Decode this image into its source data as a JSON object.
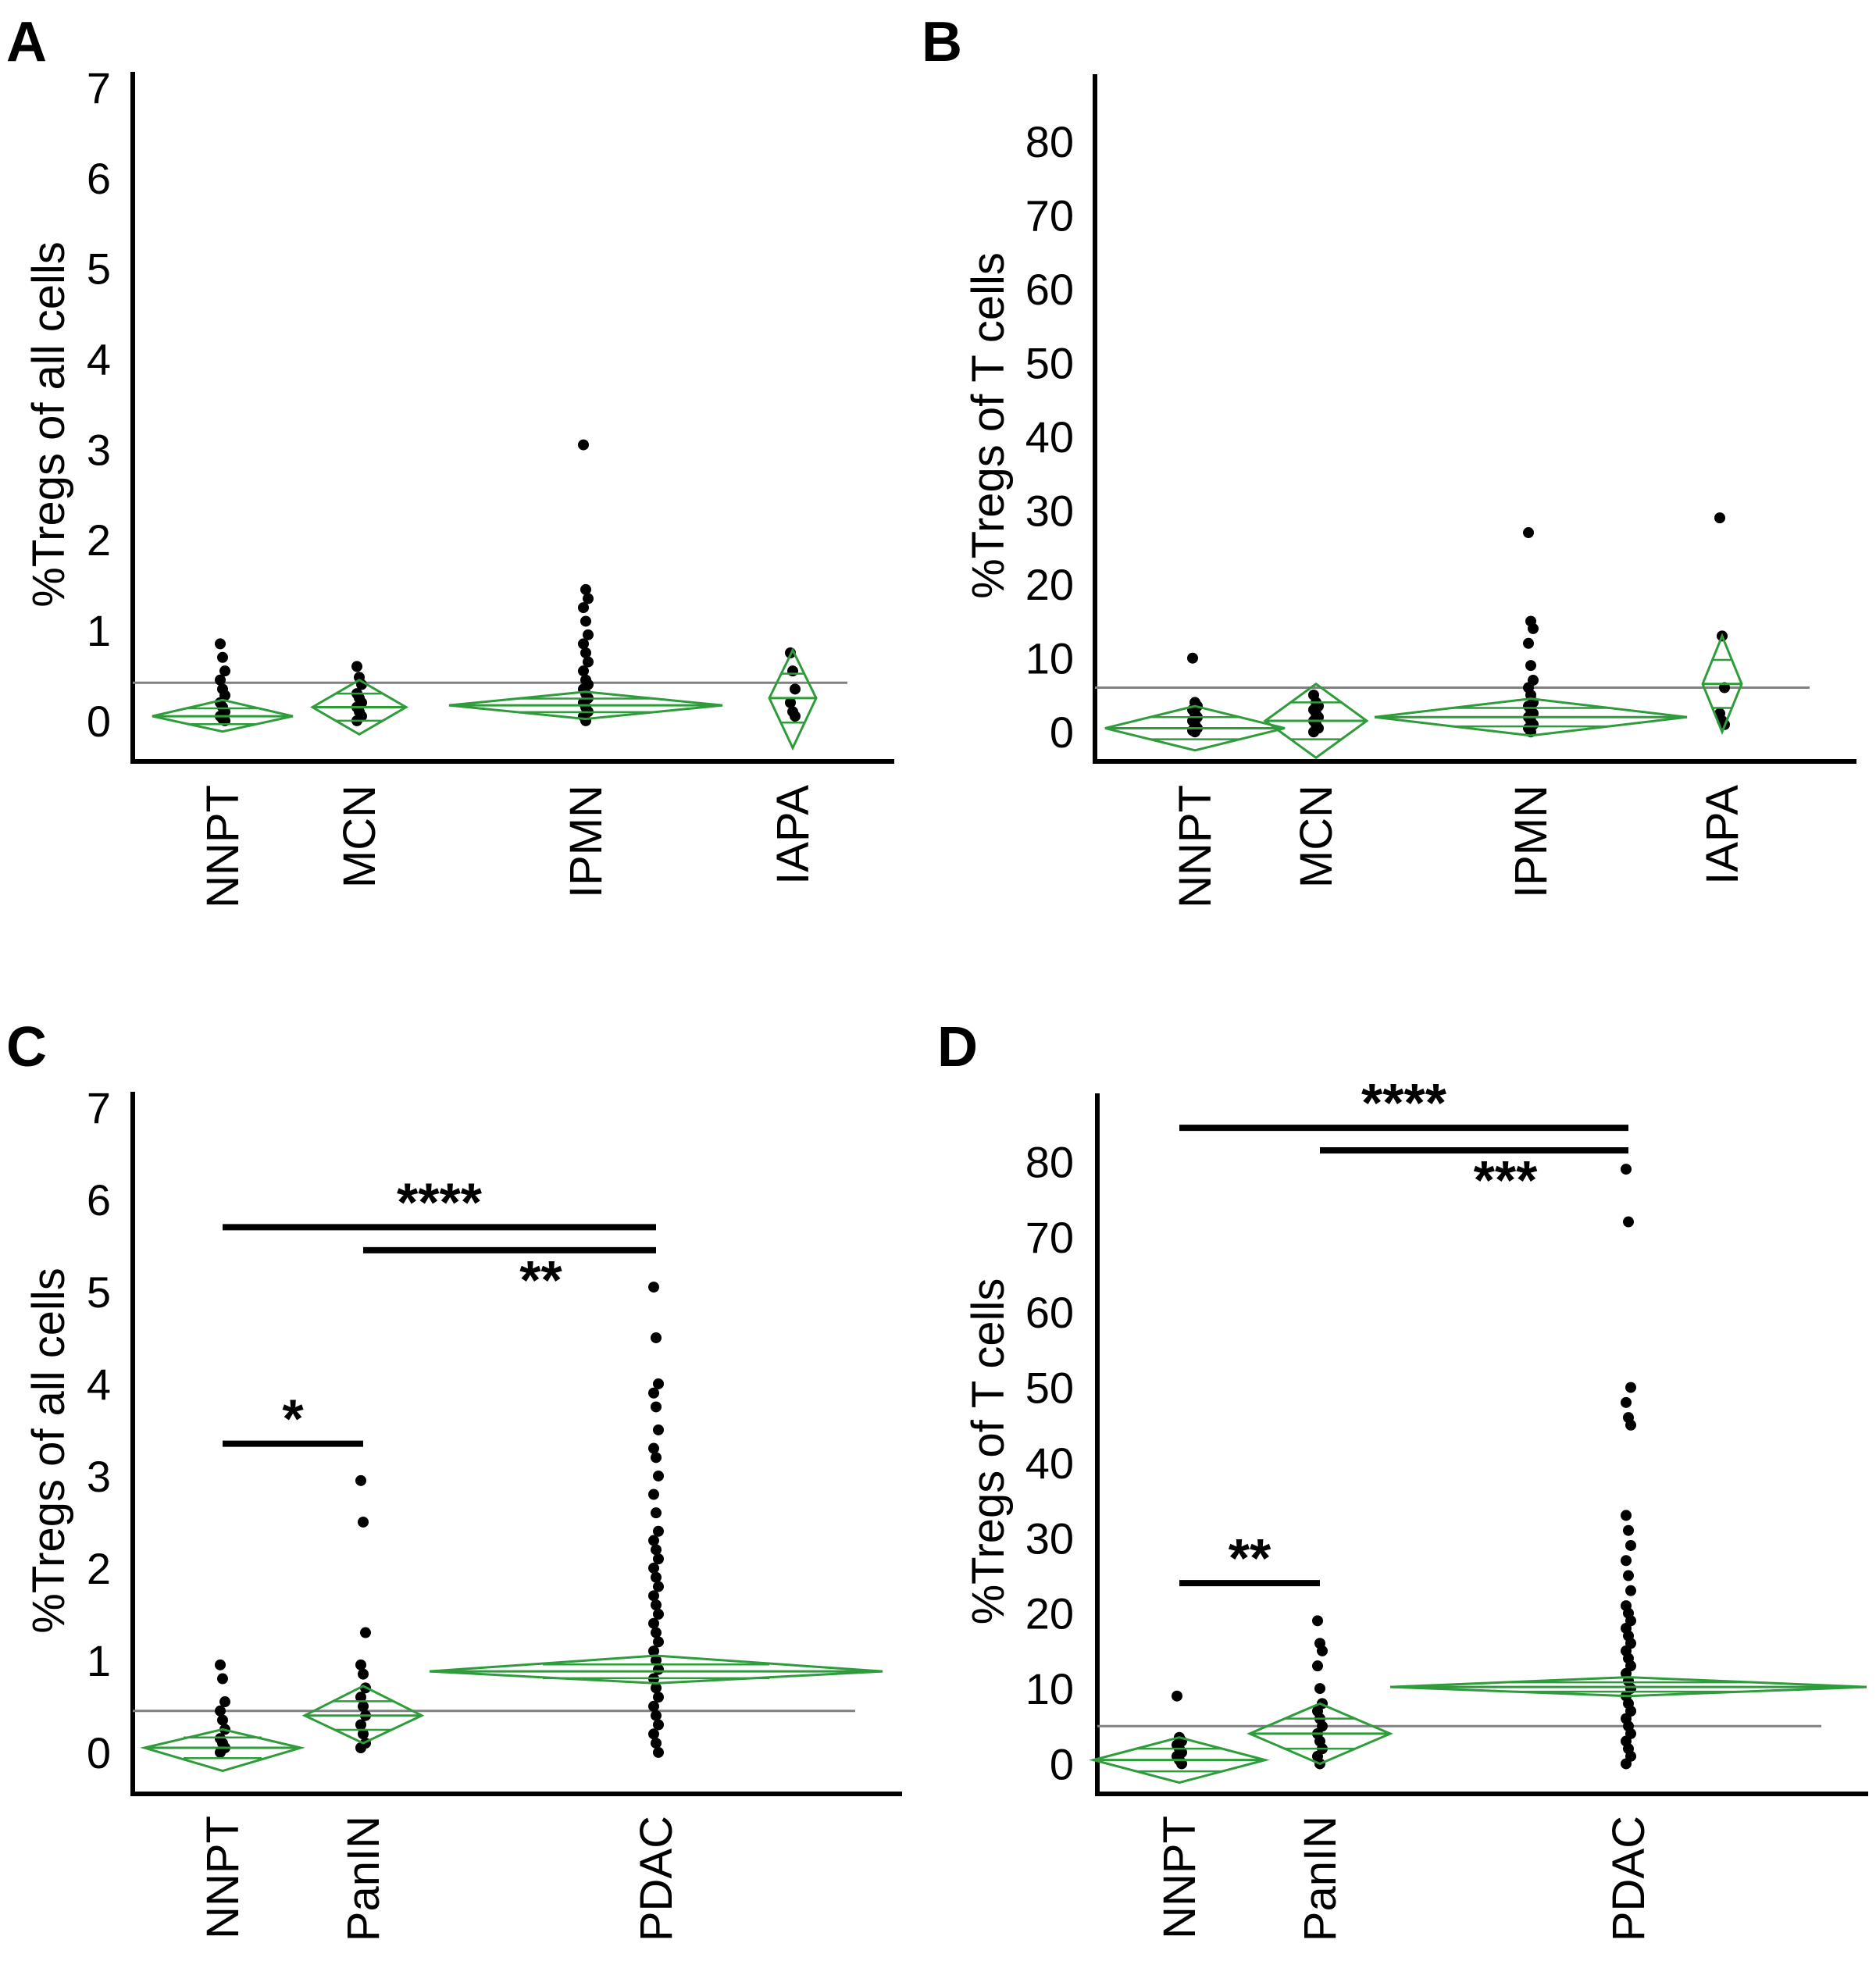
{
  "chart_data": [
    {
      "panel": "A",
      "type": "scatter",
      "ylabel": "%Tregs of all cells",
      "ylim": [
        -0.45,
        7.0
      ],
      "yticks": [
        0,
        1,
        2,
        3,
        4,
        5,
        6,
        7
      ],
      "categories": [
        "NNPT",
        "MCN",
        "IPMN",
        "IAPA"
      ],
      "grand_mean": 0.42,
      "groups": [
        {
          "name": "NNPT",
          "mean": 0.05,
          "ci": [
            -0.12,
            0.23
          ],
          "points": [
            0.85,
            0.7,
            0.55,
            0.45,
            0.35,
            0.28,
            0.2,
            0.15,
            0.1,
            0.05,
            0.02,
            0.0
          ]
        },
        {
          "name": "MCN",
          "mean": 0.15,
          "ci": [
            -0.15,
            0.45
          ],
          "points": [
            0.6,
            0.48,
            0.4,
            0.3,
            0.25,
            0.2,
            0.15,
            0.1,
            0.05,
            0.0
          ]
        },
        {
          "name": "IPMN",
          "mean": 0.17,
          "ci": [
            0.02,
            0.32
          ],
          "points": [
            3.05,
            1.45,
            1.35,
            1.25,
            1.1,
            0.95,
            0.85,
            0.75,
            0.65,
            0.55,
            0.45,
            0.4,
            0.35,
            0.3,
            0.25,
            0.2,
            0.15,
            0.1,
            0.05,
            0.0
          ]
        },
        {
          "name": "IAPA",
          "mean": 0.25,
          "ci": [
            -0.3,
            0.78
          ],
          "points": [
            0.75,
            0.55,
            0.35,
            0.2,
            0.1,
            0.05
          ]
        }
      ],
      "comparisons": []
    },
    {
      "panel": "B",
      "type": "scatter",
      "ylabel": "%Tregs of T cells",
      "ylim": [
        -4,
        87
      ],
      "yticks": [
        0,
        10,
        20,
        30,
        40,
        50,
        60,
        70,
        80
      ],
      "categories": [
        "NNPT",
        "MCN",
        "IPMN",
        "IAPA"
      ],
      "grand_mean": 6.0,
      "groups": [
        {
          "name": "NNPT",
          "mean": 0.5,
          "ci": [
            -2.5,
            3.5
          ],
          "points": [
            10.0,
            4.0,
            3.5,
            3.0,
            2.5,
            2.0,
            1.5,
            1.0,
            0.5,
            0.2,
            0.0
          ]
        },
        {
          "name": "MCN",
          "mean": 1.5,
          "ci": [
            -3.5,
            6.5
          ],
          "points": [
            5.0,
            4.0,
            3.5,
            3.0,
            2.5,
            2.0,
            1.5,
            1.0,
            0.5,
            0.0
          ]
        },
        {
          "name": "IPMN",
          "mean": 2.0,
          "ci": [
            -0.5,
            4.5
          ],
          "points": [
            27.0,
            15.0,
            14.0,
            12.0,
            9.0,
            7.0,
            6.0,
            5.0,
            4.0,
            3.5,
            3.0,
            2.5,
            2.0,
            1.5,
            1.0,
            0.5,
            0.0
          ]
        },
        {
          "name": "IAPA",
          "mean": 6.5,
          "ci": [
            0,
            13
          ],
          "points": [
            29.0,
            13.0,
            6.0,
            2.5,
            1.5,
            1.0
          ]
        }
      ],
      "comparisons": []
    },
    {
      "panel": "C",
      "type": "scatter",
      "ylabel": "%Tregs of all cells",
      "ylim": [
        -0.45,
        7.0
      ],
      "yticks": [
        0,
        1,
        2,
        3,
        4,
        5,
        6,
        7
      ],
      "categories": [
        "NNPT",
        "PanIN",
        "PDAC"
      ],
      "grand_mean": 0.45,
      "groups": [
        {
          "name": "NNPT",
          "mean": 0.05,
          "ci": [
            -0.2,
            0.25
          ],
          "points": [
            0.95,
            0.8,
            0.55,
            0.45,
            0.35,
            0.25,
            0.15,
            0.1,
            0.05,
            0.0
          ]
        },
        {
          "name": "PanIN",
          "mean": 0.4,
          "ci": [
            0.1,
            0.72
          ],
          "points": [
            2.95,
            2.5,
            1.3,
            0.95,
            0.85,
            0.7,
            0.6,
            0.5,
            0.4,
            0.3,
            0.2,
            0.1,
            0.05
          ]
        },
        {
          "name": "PDAC",
          "mean": 0.88,
          "ci": [
            0.75,
            1.05
          ],
          "points": [
            5.05,
            4.5,
            4.0,
            3.9,
            3.75,
            3.5,
            3.3,
            3.2,
            3.0,
            2.8,
            2.6,
            2.4,
            2.3,
            2.2,
            2.1,
            2.0,
            1.9,
            1.8,
            1.7,
            1.6,
            1.5,
            1.4,
            1.3,
            1.2,
            1.1,
            1.0,
            0.9,
            0.8,
            0.7,
            0.6,
            0.5,
            0.4,
            0.3,
            0.2,
            0.1,
            0.0
          ]
        }
      ],
      "comparisons": [
        {
          "from": "NNPT",
          "to": "PDAC",
          "label": "****",
          "y": 5.7
        },
        {
          "from": "PanIN",
          "to": "PDAC",
          "label": "**",
          "y": 5.45
        },
        {
          "from": "NNPT",
          "to": "PanIN",
          "label": "*",
          "y": 3.35
        }
      ]
    },
    {
      "panel": "D",
      "type": "scatter",
      "ylabel": "%Tregs of T cells",
      "ylim": [
        -4,
        87
      ],
      "yticks": [
        0,
        10,
        20,
        30,
        40,
        50,
        60,
        70,
        80
      ],
      "categories": [
        "NNPT",
        "PanIN",
        "PDAC"
      ],
      "grand_mean": 5.0,
      "groups": [
        {
          "name": "NNPT",
          "mean": 0.5,
          "ci": [
            -2.5,
            3.5
          ],
          "points": [
            9.0,
            3.5,
            3.0,
            2.5,
            2.0,
            1.5,
            1.0,
            0.5,
            0.0
          ]
        },
        {
          "name": "PanIN",
          "mean": 4.0,
          "ci": [
            0,
            8
          ],
          "points": [
            19.0,
            16.0,
            15.0,
            13.0,
            10.0,
            8.0,
            7.0,
            6.0,
            5.0,
            4.0,
            3.0,
            2.0,
            1.0,
            0.0
          ]
        },
        {
          "name": "PDAC",
          "mean": 10.2,
          "ci": [
            9.0,
            11.5
          ],
          "points": [
            79.0,
            72.0,
            50.0,
            48.0,
            46.0,
            45.0,
            33.0,
            31.0,
            29.0,
            27.0,
            25.0,
            23.0,
            21.0,
            20.0,
            19.0,
            18.0,
            17.0,
            16.0,
            15.0,
            14.0,
            13.0,
            12.0,
            11.0,
            10.0,
            9.0,
            8.0,
            7.0,
            6.0,
            5.0,
            4.0,
            3.0,
            2.0,
            1.0,
            0.0
          ]
        }
      ],
      "comparisons": [
        {
          "from": "NNPT",
          "to": "PDAC",
          "label": "****",
          "y": 84.5
        },
        {
          "from": "PanIN",
          "to": "PDAC",
          "label": "***",
          "y": 81.5
        },
        {
          "from": "NNPT",
          "to": "PanIN",
          "label": "**",
          "y": 24.0
        }
      ]
    }
  ],
  "colors": {
    "diamond": "#2e9c3a",
    "point": "#000000",
    "mean_line": "#808080",
    "axis": "#000000"
  }
}
